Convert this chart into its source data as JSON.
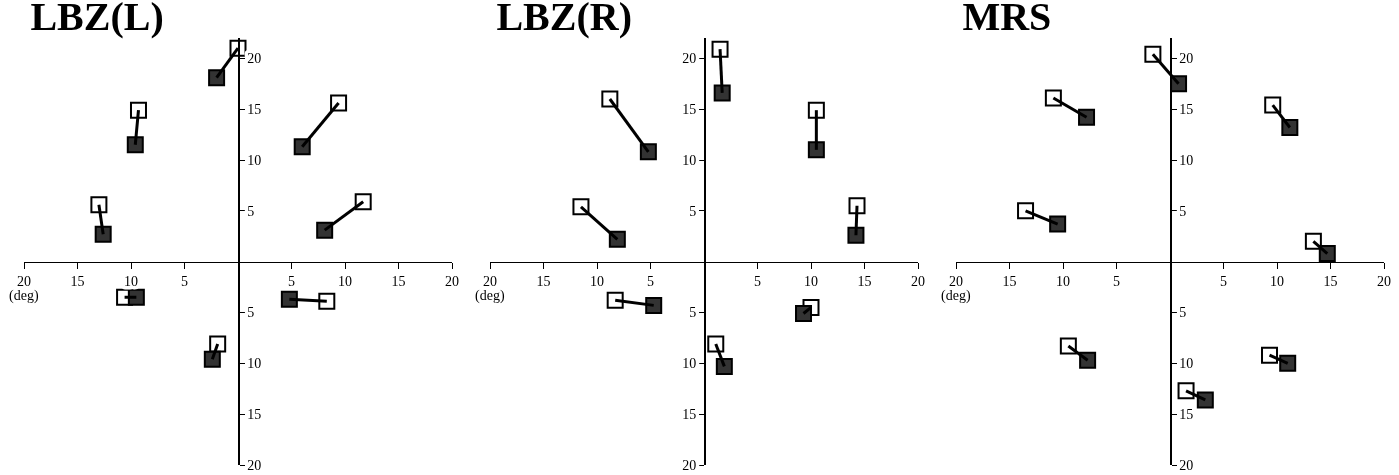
{
  "chart_data": [
    {
      "type": "scatter",
      "title": "LBZ(L)",
      "annotations": [
        "(deg)"
      ],
      "grid": false,
      "xlim": [
        -20,
        20
      ],
      "ylim": [
        -20,
        22
      ],
      "xticks": [
        {
          "value": -20,
          "label": "20"
        },
        {
          "value": -15,
          "label": "15"
        },
        {
          "value": -10,
          "label": "10"
        },
        {
          "value": -5,
          "label": "5"
        },
        5,
        10,
        15,
        20
      ],
      "yticks": [
        {
          "value": -20,
          "label": "20"
        },
        {
          "value": -15,
          "label": "15"
        },
        {
          "value": -10,
          "label": "10"
        },
        {
          "value": -5,
          "label": "5"
        },
        5,
        10,
        15,
        20
      ],
      "series": [
        {
          "marker": "square",
          "color": "#ffffff",
          "x": [
            0,
            -9.3,
            -13,
            9.4,
            11.7,
            -10.6,
            8.3,
            -1.9
          ],
          "values": [
            21,
            14.9,
            5.6,
            15.6,
            5.9,
            -3.5,
            -3.9,
            -8.1
          ]
        },
        {
          "marker": "square",
          "color": "#333333",
          "x": [
            -2,
            -9.6,
            -12.6,
            6,
            8.1,
            -9.5,
            4.8,
            -2.4
          ],
          "values": [
            18.1,
            11.5,
            2.7,
            11.3,
            3.1,
            -3.5,
            -3.7,
            -9.6
          ]
        },
        {
          "type": "line",
          "marker": "none",
          "color": "#000000",
          "x": [
            0,
            -2,
            null,
            -9.3,
            -9.6,
            null,
            -13,
            -12.6,
            null,
            9.4,
            6,
            null,
            11.7,
            8.1,
            null,
            -10.6,
            -9.5,
            null,
            8.3,
            4.8,
            null,
            -1.9,
            -2.4
          ],
          "values": [
            21,
            18.1,
            null,
            14.9,
            11.5,
            null,
            5.6,
            2.7,
            null,
            15.6,
            11.3,
            null,
            5.9,
            3.1,
            null,
            -3.5,
            -3.5,
            null,
            -3.9,
            -3.7,
            null,
            -8.1,
            -9.6
          ]
        }
      ]
    },
    {
      "type": "scatter",
      "title": "LBZ(R)",
      "annotations": [
        "(deg)"
      ],
      "grid": false,
      "xlim": [
        -20,
        20
      ],
      "ylim": [
        -20,
        22
      ],
      "xticks": [
        {
          "value": -20,
          "label": "20"
        },
        {
          "value": -15,
          "label": "15"
        },
        {
          "value": -10,
          "label": "10"
        },
        {
          "value": -5,
          "label": "5"
        },
        5,
        10,
        15,
        20
      ],
      "yticks": [
        {
          "value": -20,
          "label": "20"
        },
        {
          "value": -15,
          "label": "15"
        },
        {
          "value": -10,
          "label": "10"
        },
        {
          "value": -5,
          "label": "5"
        },
        5,
        10,
        15,
        20
      ],
      "series": [
        {
          "marker": "square",
          "color": "#ffffff",
          "x": [
            1.5,
            -8.8,
            10.5,
            -11.5,
            14.3,
            -8.3,
            10,
            1.1
          ],
          "values": [
            20.9,
            16,
            14.9,
            5.4,
            5.5,
            -3.8,
            -4.5,
            -8.1
          ]
        },
        {
          "marker": "square",
          "color": "#333333",
          "x": [
            1.7,
            -5.2,
            10.5,
            -8.1,
            14.2,
            -4.7,
            9.3,
            1.9
          ],
          "values": [
            16.6,
            10.8,
            11,
            2.2,
            2.6,
            -4.3,
            -5.1,
            -10.3
          ]
        },
        {
          "type": "line",
          "marker": "none",
          "color": "#000000",
          "x": [
            1.5,
            1.7,
            null,
            -8.8,
            -5.2,
            null,
            10.5,
            10.5,
            null,
            -11.5,
            -8.1,
            null,
            14.3,
            14.2,
            null,
            -8.3,
            -4.7,
            null,
            10,
            9.3,
            null,
            1.1,
            1.9
          ],
          "values": [
            20.9,
            16.6,
            null,
            16,
            10.8,
            null,
            14.9,
            11,
            null,
            5.4,
            2.2,
            null,
            5.5,
            2.6,
            null,
            -3.8,
            -4.3,
            null,
            -4.5,
            -5.1,
            null,
            -8.1,
            -10.3
          ]
        }
      ]
    },
    {
      "type": "scatter",
      "title": "MRS",
      "annotations": [
        "(deg)"
      ],
      "grid": false,
      "xlim": [
        -20,
        20
      ],
      "ylim": [
        -20,
        22
      ],
      "xticks": [
        {
          "value": -20,
          "label": "20"
        },
        {
          "value": -15,
          "label": "15"
        },
        {
          "value": -10,
          "label": "10"
        },
        {
          "value": -5,
          "label": "5"
        },
        5,
        10,
        15,
        20
      ],
      "yticks": [
        {
          "value": -20,
          "label": "20"
        },
        {
          "value": -15,
          "label": "15"
        },
        {
          "value": -10,
          "label": "10"
        },
        {
          "value": -5,
          "label": "5"
        },
        5,
        10,
        15,
        20
      ],
      "series": [
        {
          "marker": "square",
          "color": "#ffffff",
          "x": [
            -1.6,
            -10.9,
            9.6,
            -13.5,
            13.4,
            -9.5,
            9.3,
            1.5
          ],
          "values": [
            20.4,
            16.1,
            15.4,
            5,
            2,
            -8.3,
            -9.2,
            -12.7
          ]
        },
        {
          "marker": "square",
          "color": "#333333",
          "x": [
            0.8,
            -7.8,
            11.2,
            -10.5,
            14.7,
            -7.7,
            11,
            3.3
          ],
          "values": [
            17.5,
            14.2,
            13.2,
            3.7,
            0.8,
            -9.7,
            -10,
            -13.6
          ]
        },
        {
          "type": "line",
          "marker": "none",
          "color": "#000000",
          "x": [
            -1.6,
            0.8,
            null,
            -10.9,
            -7.8,
            null,
            9.6,
            11.2,
            null,
            -13.5,
            -10.5,
            null,
            13.4,
            14.7,
            null,
            -9.5,
            -7.7,
            null,
            9.3,
            11,
            null,
            1.5,
            3.3
          ],
          "values": [
            20.4,
            17.5,
            null,
            16.1,
            14.2,
            null,
            15.4,
            13.2,
            null,
            5,
            3.7,
            null,
            2,
            0.8,
            null,
            -8.3,
            -9.7,
            null,
            -9.2,
            -10,
            null,
            -12.7,
            -13.6
          ]
        }
      ]
    }
  ]
}
